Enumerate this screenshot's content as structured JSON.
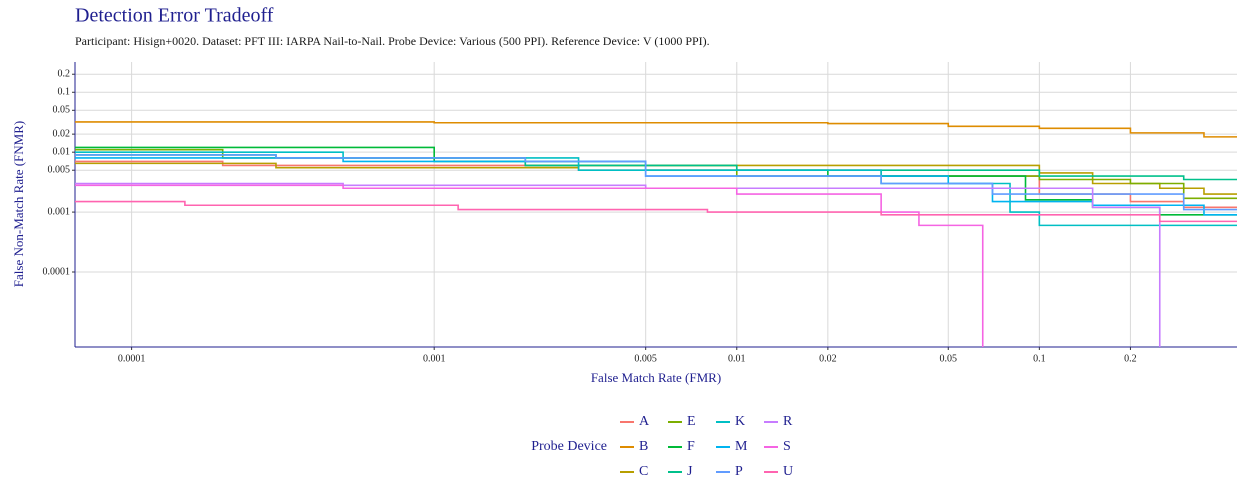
{
  "chart_data": {
    "type": "step",
    "title": "Detection Error Tradeoff",
    "subtitle": "Participant: Hisign+0020. Dataset: PFT III: IARPA Nail-to-Nail. Probe Device: Various (500 PPI). Reference Device: V (1000 PPI).",
    "x_label": "False Match Rate (FMR)",
    "y_label": "False Non-Match Rate (FNMR)",
    "legend_title": "Probe Device",
    "log_x": true,
    "log_y": true,
    "grid": true,
    "xlim": [
      6.5e-05,
      0.45
    ],
    "ylim": [
      5.6e-06,
      0.32
    ],
    "xticks": [
      0.0001,
      0.001,
      0.005,
      0.01,
      0.02,
      0.05,
      0.1,
      0.2
    ],
    "yticks": [
      0.0001,
      0.001,
      0.005,
      0.01,
      0.02,
      0.05,
      0.1,
      0.2
    ],
    "series": [
      {
        "name": "A",
        "color": "#F8766D",
        "x": [
          6.5e-05,
          0.0002,
          0.003,
          0.03,
          0.1,
          0.2,
          0.3
        ],
        "values": [
          0.007,
          0.006,
          0.005,
          0.004,
          0.002,
          0.0015,
          0.0012
        ]
      },
      {
        "name": "B",
        "color": "#DE8C00",
        "x": [
          6.5e-05,
          0.001,
          0.02,
          0.05,
          0.1,
          0.2,
          0.35
        ],
        "values": [
          0.032,
          0.031,
          0.03,
          0.027,
          0.025,
          0.021,
          0.018
        ]
      },
      {
        "name": "C",
        "color": "#B79F00",
        "x": [
          6.5e-05,
          0.0003,
          0.003,
          0.1,
          0.15,
          0.25,
          0.35
        ],
        "values": [
          0.0065,
          0.0055,
          0.006,
          0.0045,
          0.003,
          0.0025,
          0.002
        ]
      },
      {
        "name": "E",
        "color": "#7CAE00",
        "x": [
          6.5e-05,
          0.0002,
          0.002,
          0.01,
          0.1,
          0.2,
          0.3
        ],
        "values": [
          0.011,
          0.008,
          0.006,
          0.004,
          0.0035,
          0.003,
          0.0017
        ]
      },
      {
        "name": "F",
        "color": "#00BA38",
        "x": [
          6.5e-05,
          0.001,
          0.005,
          0.02,
          0.09,
          0.15,
          0.25
        ],
        "values": [
          0.012,
          0.007,
          0.005,
          0.004,
          0.0016,
          0.0012,
          0.0009
        ]
      },
      {
        "name": "J",
        "color": "#00C08B",
        "x": [
          6.5e-05,
          0.0003,
          0.002,
          0.01,
          0.1,
          0.3
        ],
        "values": [
          0.009,
          0.008,
          0.006,
          0.005,
          0.004,
          0.0035
        ]
      },
      {
        "name": "K",
        "color": "#00BFC4",
        "x": [
          6.5e-05,
          0.0005,
          0.003,
          0.03,
          0.08,
          0.1,
          0.3
        ],
        "values": [
          0.01,
          0.008,
          0.005,
          0.003,
          0.001,
          0.0006,
          0.0006
        ]
      },
      {
        "name": "M",
        "color": "#00B4F0",
        "x": [
          6.5e-05,
          0.0005,
          0.005,
          0.05,
          0.07,
          0.15,
          0.35
        ],
        "values": [
          0.008,
          0.007,
          0.004,
          0.003,
          0.0015,
          0.0013,
          0.0009
        ]
      },
      {
        "name": "P",
        "color": "#619CFF",
        "x": [
          6.5e-05,
          0.0003,
          0.002,
          0.005,
          0.03,
          0.07,
          0.3
        ],
        "values": [
          0.009,
          0.008,
          0.007,
          0.004,
          0.003,
          0.002,
          0.0011
        ]
      },
      {
        "name": "R",
        "color": "#C77CFF",
        "x": [
          6.5e-05,
          0.0005,
          0.005,
          0.15,
          0.25
        ],
        "values": [
          0.003,
          0.0028,
          0.0025,
          0.0012,
          0
        ]
      },
      {
        "name": "S",
        "color": "#F564E3",
        "x": [
          6.5e-05,
          0.0005,
          0.01,
          0.03,
          0.04,
          0.065
        ],
        "values": [
          0.0028,
          0.0025,
          0.002,
          0.001,
          0.0006,
          0
        ]
      },
      {
        "name": "U",
        "color": "#FF64B0",
        "x": [
          6.5e-05,
          0.00015,
          0.0012,
          0.008,
          0.03,
          0.25
        ],
        "values": [
          0.0015,
          0.0013,
          0.0011,
          0.001,
          0.0009,
          0.0007
        ]
      }
    ]
  }
}
